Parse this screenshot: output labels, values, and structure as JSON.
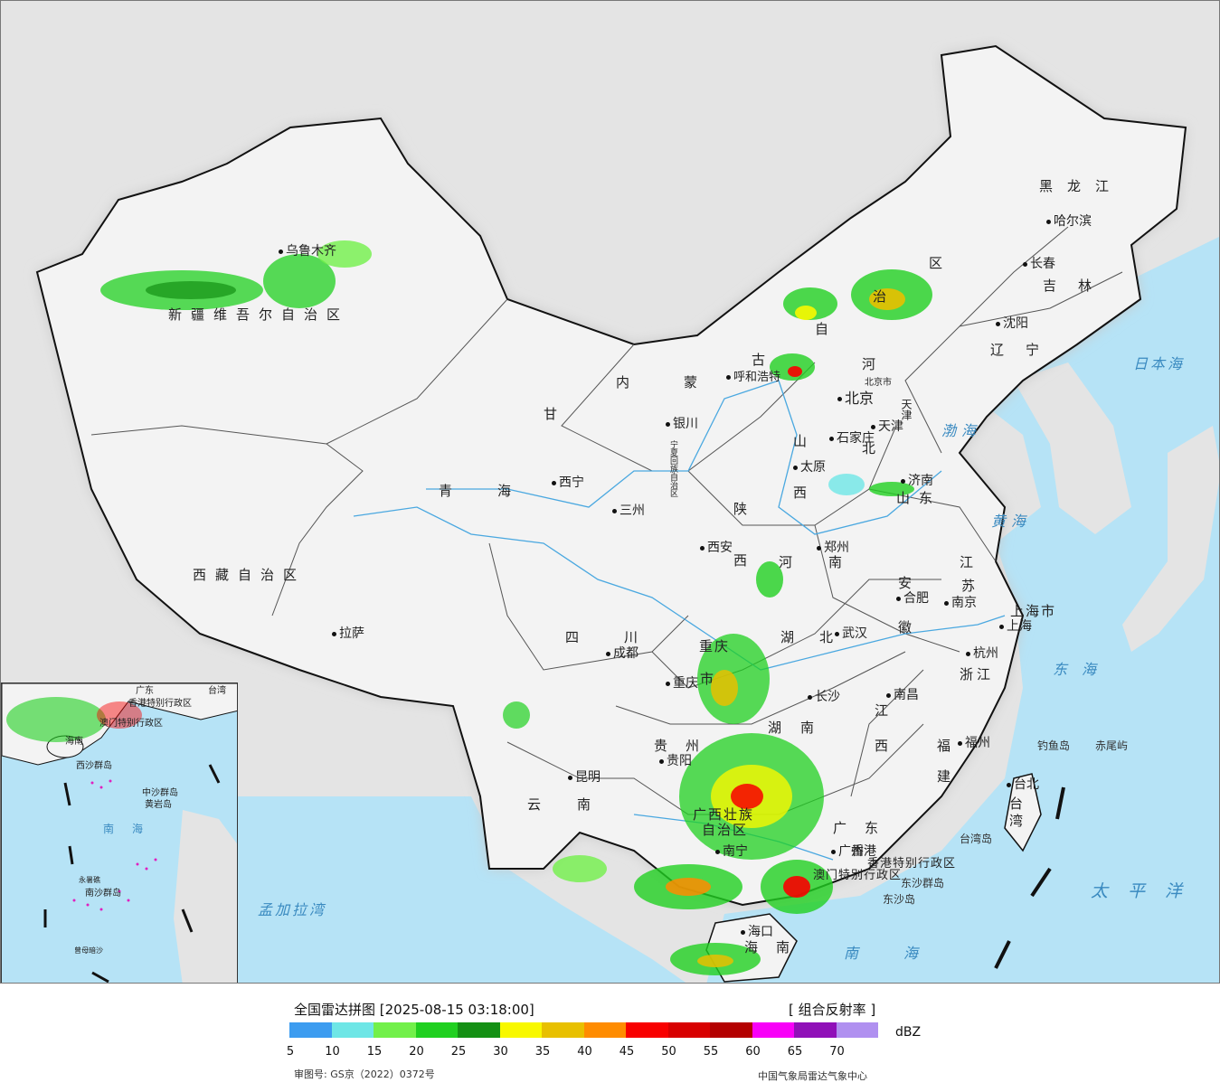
{
  "map": {
    "cities": [
      {
        "id": "urumqi",
        "name": "乌鲁木齐"
      },
      {
        "id": "hohhot",
        "name": "呼和浩特"
      },
      {
        "id": "beijing",
        "name": "北京"
      },
      {
        "id": "beijing_city",
        "name": "北京市"
      },
      {
        "id": "tianjin",
        "name": "天津"
      },
      {
        "id": "shijiazhuang",
        "name": "石家庄"
      },
      {
        "id": "taiyuan",
        "name": "太原"
      },
      {
        "id": "jinan",
        "name": "济南"
      },
      {
        "id": "zhengzhou",
        "name": "郑州"
      },
      {
        "id": "xian",
        "name": "西安"
      },
      {
        "id": "yinchuan",
        "name": "银川"
      },
      {
        "id": "xining",
        "name": "西宁"
      },
      {
        "id": "lanzhou",
        "name": "三州"
      },
      {
        "id": "lasa",
        "name": "拉萨"
      },
      {
        "id": "chengdu",
        "name": "成都"
      },
      {
        "id": "chongqing",
        "name": "重庆"
      },
      {
        "id": "wuhan",
        "name": "武汉"
      },
      {
        "id": "hefei",
        "name": "合肥"
      },
      {
        "id": "nanjing",
        "name": "南京"
      },
      {
        "id": "shanghai",
        "name": "上海"
      },
      {
        "id": "hangzhou",
        "name": "杭州"
      },
      {
        "id": "changsha",
        "name": "长沙"
      },
      {
        "id": "nanchang",
        "name": "南昌"
      },
      {
        "id": "fuzhou",
        "name": "福州"
      },
      {
        "id": "guiyang",
        "name": "贵阳"
      },
      {
        "id": "kunming",
        "name": "昆明"
      },
      {
        "id": "nanning",
        "name": "南宁"
      },
      {
        "id": "guangzhou",
        "name": "广州"
      },
      {
        "id": "hongkong",
        "name": "香港"
      },
      {
        "id": "haikou",
        "name": "海口"
      },
      {
        "id": "taibei",
        "name": "台北"
      },
      {
        "id": "shenyang",
        "name": "沈阳"
      },
      {
        "id": "changchun",
        "name": "长春"
      },
      {
        "id": "harbin",
        "name": "哈尔滨"
      }
    ],
    "provinces": [
      {
        "id": "xinjiang",
        "name": "新疆维吾尔自治区"
      },
      {
        "id": "xizang",
        "name": "西藏自治区"
      },
      {
        "id": "qinghai",
        "name": "青海"
      },
      {
        "id": "gansu",
        "name": "甘"
      },
      {
        "id": "neimenggu",
        "name": "内蒙"
      },
      {
        "id": "neimenggu2",
        "name": "古"
      },
      {
        "id": "neimenggu3",
        "name": "自"
      },
      {
        "id": "neimenggu4",
        "name": "治"
      },
      {
        "id": "neimenggu5",
        "name": "区"
      },
      {
        "id": "ningxia",
        "name": "宁夏回族自治区"
      },
      {
        "id": "shaanxi",
        "name": "陕"
      },
      {
        "id": "shaanxi2",
        "name": "西"
      },
      {
        "id": "shanxi",
        "name": "山"
      },
      {
        "id": "shanxi2",
        "name": "西"
      },
      {
        "id": "hebei",
        "name": "河"
      },
      {
        "id": "hebei2",
        "name": "北"
      },
      {
        "id": "shandong",
        "name": "山东"
      },
      {
        "id": "henan",
        "name": "河南"
      },
      {
        "id": "hubei",
        "name": "湖北"
      },
      {
        "id": "hunan",
        "name": "湖"
      },
      {
        "id": "hunan2",
        "name": "南"
      },
      {
        "id": "sichuan",
        "name": "四川"
      },
      {
        "id": "guizhou",
        "name": "贵州"
      },
      {
        "id": "yunnan",
        "name": "云南"
      },
      {
        "id": "guangxi",
        "name": "广西壮族"
      },
      {
        "id": "guangxi2",
        "name": "自治区"
      },
      {
        "id": "guangdong",
        "name": "广东"
      },
      {
        "id": "jiangxi",
        "name": "江"
      },
      {
        "id": "jiangxi2",
        "name": "西"
      },
      {
        "id": "fujian",
        "name": "福"
      },
      {
        "id": "fujian2",
        "name": "建"
      },
      {
        "id": "zhejiang",
        "name": "浙江"
      },
      {
        "id": "jiangsu",
        "name": "江"
      },
      {
        "id": "jiangsu2",
        "name": "苏"
      },
      {
        "id": "anhui",
        "name": "安"
      },
      {
        "id": "anhui2",
        "name": "徽"
      },
      {
        "id": "chongqing_p",
        "name": "重庆"
      },
      {
        "id": "chongqing_p2",
        "name": "市"
      },
      {
        "id": "shanghai_p",
        "name": "上海市"
      },
      {
        "id": "tianjin_p",
        "name": "天津"
      },
      {
        "id": "liaoning",
        "name": "辽宁"
      },
      {
        "id": "jilin",
        "name": "吉林"
      },
      {
        "id": "heilongjiang",
        "name": "黑龙江"
      },
      {
        "id": "taiwan",
        "name": "台湾"
      },
      {
        "id": "hainan",
        "name": "海南"
      },
      {
        "id": "hk_sar",
        "name": "香港特别行政区"
      },
      {
        "id": "macao_sar",
        "name": "澳门特别行政区"
      }
    ],
    "seas": [
      {
        "id": "bohai",
        "name": "渤海"
      },
      {
        "id": "huanghai",
        "name": "黄海"
      },
      {
        "id": "donghai",
        "name": "东海"
      },
      {
        "id": "nanhai",
        "name": "南海"
      },
      {
        "id": "riben",
        "name": "日本海"
      },
      {
        "id": "taipingyang",
        "name": "太平洋"
      },
      {
        "id": "mengjiala",
        "name": "孟加拉湾"
      }
    ],
    "islands": [
      {
        "id": "diaoyu",
        "name": "钓鱼岛"
      },
      {
        "id": "chiwei",
        "name": "赤尾屿"
      },
      {
        "id": "dongsha",
        "name": "东沙群岛"
      },
      {
        "id": "dongsha2",
        "name": "东沙岛"
      },
      {
        "id": "taiwan_is",
        "name": "台湾岛"
      }
    ],
    "inset": {
      "labels": [
        {
          "id": "nanhai",
          "name": "南海"
        },
        {
          "id": "zhongsha",
          "name": "中沙群岛"
        },
        {
          "id": "huangyan",
          "name": "黄岩岛"
        },
        {
          "id": "nansha",
          "name": "南沙群岛"
        },
        {
          "id": "yongshu",
          "name": "永暑礁"
        },
        {
          "id": "zengmu",
          "name": "曾母暗沙"
        },
        {
          "id": "xisha",
          "name": "西沙群岛"
        },
        {
          "id": "hk",
          "name": "香港特别行政区"
        },
        {
          "id": "mo",
          "name": "澳门特别行政区"
        },
        {
          "id": "gd",
          "name": "广东"
        },
        {
          "id": "tw",
          "name": "台湾"
        },
        {
          "id": "hn",
          "name": "海南"
        }
      ]
    }
  },
  "legend": {
    "title": "全国雷达拼图 [2025-08-15 03:18:00]",
    "product": "[ 组合反射率 ]",
    "unit": "dBZ",
    "colors": [
      "#3c9cf0",
      "#6ee6e6",
      "#72f04a",
      "#20d020",
      "#149014",
      "#f8f800",
      "#e8c000",
      "#ff8c00",
      "#f80000",
      "#d80000",
      "#b40000",
      "#f800f8",
      "#9010b8",
      "#b090f0"
    ],
    "ticks": [
      "5",
      "10",
      "15",
      "20",
      "25",
      "30",
      "35",
      "40",
      "45",
      "50",
      "55",
      "60",
      "65",
      "70"
    ],
    "approval": "审图号: GS京（2022）0372号",
    "credit": "中国气象局雷达气象中心"
  }
}
